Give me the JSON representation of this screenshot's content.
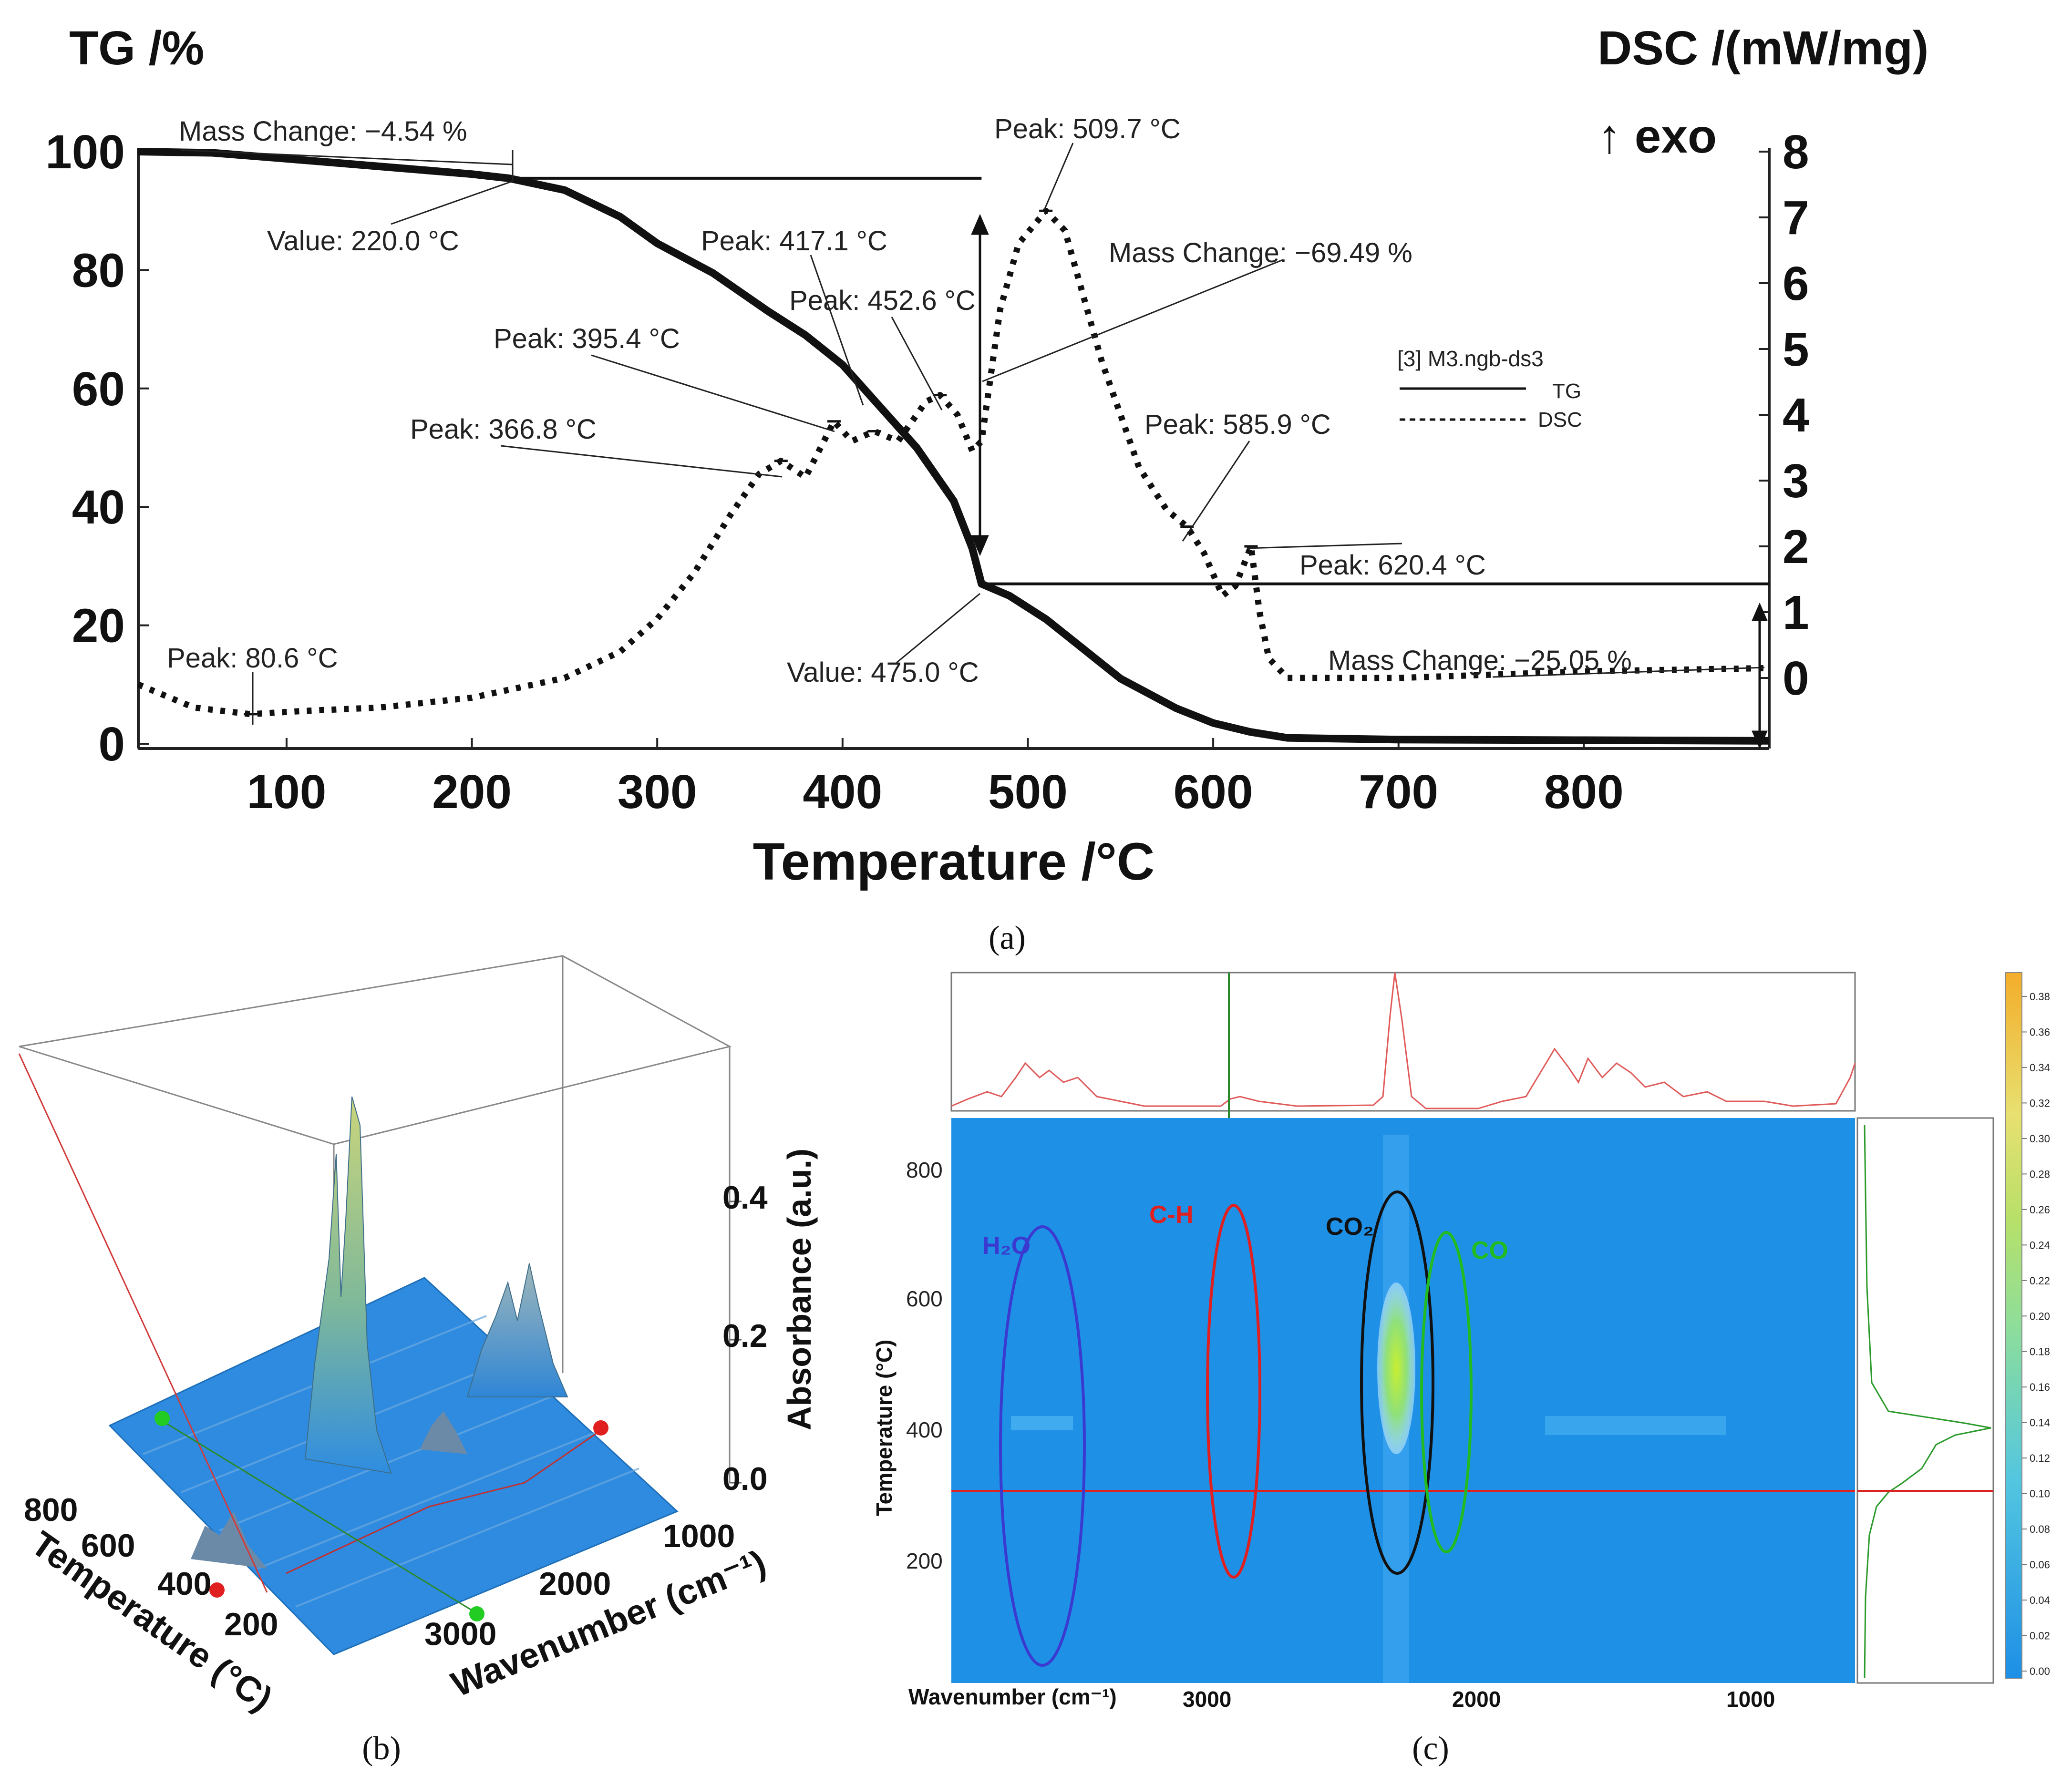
{
  "panel_labels": [
    "(a)",
    "(b)",
    "(c)"
  ],
  "colors": {
    "ir_blue": "#1e90e6",
    "water": "#3a3ad0",
    "ch": "#e02020",
    "co2": "#111111",
    "co": "#22bb22",
    "spectrum": "#e05a5a",
    "cursor_h": "#dd2222",
    "cursor_v": "#2a8a2a"
  },
  "chart_data": [
    {
      "id": "a",
      "type": "line",
      "title": "",
      "xlabel": "Temperature /°C",
      "ylabel_left": "TG /%",
      "ylabel_right": "DSC /(mW/mg)",
      "exo_label": "↑ exo",
      "xlim": [
        20,
        900
      ],
      "ylim_left": [
        0,
        100
      ],
      "ylim_right": [
        -1,
        8
      ],
      "xticks": [
        100,
        200,
        300,
        400,
        500,
        600,
        700,
        800
      ],
      "yticks_left": [
        0,
        20,
        40,
        60,
        80,
        100
      ],
      "yticks_right": [
        0,
        1,
        2,
        3,
        4,
        5,
        6,
        7,
        8
      ],
      "legend": {
        "sample": "[3] M3.ngb-ds3",
        "entries": [
          "TG",
          "DSC"
        ],
        "position": "center-right"
      },
      "series": [
        {
          "name": "TG",
          "axis": "left",
          "style": "solid",
          "x": [
            20,
            60,
            100,
            150,
            200,
            220,
            250,
            280,
            300,
            330,
            360,
            380,
            400,
            420,
            440,
            460,
            470,
            475,
            490,
            510,
            530,
            550,
            580,
            600,
            620,
            640,
            700,
            800,
            900
          ],
          "y": [
            100,
            99.8,
            98.8,
            97.5,
            96.2,
            95.5,
            93.5,
            89,
            84.5,
            79.5,
            73,
            69,
            64,
            57,
            50,
            41,
            33,
            27,
            25,
            21,
            16,
            11,
            6,
            3.5,
            2,
            1,
            0.7,
            0.6,
            0.5
          ]
        },
        {
          "name": "DSC",
          "axis": "right",
          "style": "dotted",
          "x": [
            20,
            50,
            80.6,
            110,
            150,
            200,
            250,
            280,
            300,
            320,
            340,
            355,
            366.8,
            380,
            395.4,
            405,
            417.1,
            430,
            445,
            452.6,
            462,
            470,
            475,
            485,
            495,
            509.7,
            520,
            530,
            540,
            550,
            560,
            575,
            585.9,
            595,
            605,
            612,
            620.4,
            625,
            630,
            640,
            700,
            800,
            900
          ],
          "y": [
            -0.1,
            -0.45,
            -0.55,
            -0.5,
            -0.45,
            -0.3,
            0.0,
            0.4,
            0.9,
            1.6,
            2.5,
            3.1,
            3.3,
            3.05,
            3.9,
            3.6,
            3.75,
            3.6,
            4.2,
            4.3,
            4.0,
            3.45,
            3.6,
            5.6,
            6.6,
            7.1,
            6.8,
            5.8,
            4.8,
            4.0,
            3.2,
            2.55,
            2.3,
            1.9,
            1.25,
            1.4,
            2.0,
            1.0,
            0.3,
            0.0,
            0.0,
            0.1,
            0.15
          ]
        }
      ],
      "annotations": [
        "Mass Change: −4.54 %",
        "Value: 220.0 °C",
        "Peak: 509.7 °C",
        "Peak: 417.1 °C",
        "Mass Change: −69.49 %",
        "Peak: 452.6 °C",
        "Peak: 395.4 °C",
        "Peak: 366.8 °C",
        "Peak: 585.9 °C",
        "Peak: 620.4 °C",
        "Peak: 80.6 °C",
        "Value: 475.0 °C",
        "Mass Change: −25.05 %"
      ]
    },
    {
      "id": "b",
      "type": "area",
      "title": "",
      "xlabel": "Wavenumber (cm⁻¹)",
      "ylabel": "Temperature (°C)",
      "zlabel": "Absorbance (a.u.)",
      "xticks": [
        "1000",
        "2000",
        "3000"
      ],
      "yticks": [
        "800",
        "600",
        "400",
        "200"
      ],
      "zticks": [
        "0.0",
        "0.2",
        "0.4"
      ]
    },
    {
      "id": "c",
      "type": "heatmap",
      "title": "",
      "xlabel": "Wavenumber (cm⁻¹)",
      "ylabel": "Temperature (°C)",
      "xticks": [
        "3000",
        "2000",
        "1000"
      ],
      "yticks": [
        "800",
        "600",
        "400",
        "200"
      ],
      "region_labels": {
        "water": "H₂O",
        "ch": "C-H",
        "co2": "CO₂",
        "co": "CO"
      },
      "colorbar_ticks": [
        "0.38",
        "0.36",
        "0.34",
        "0.32",
        "0.30",
        "0.28",
        "0.26",
        "0.24",
        "0.22",
        "0.20",
        "0.18",
        "0.16",
        "0.14",
        "0.12",
        "0.10",
        "0.08",
        "0.06",
        "0.04",
        "0.02",
        "0.00"
      ]
    }
  ]
}
